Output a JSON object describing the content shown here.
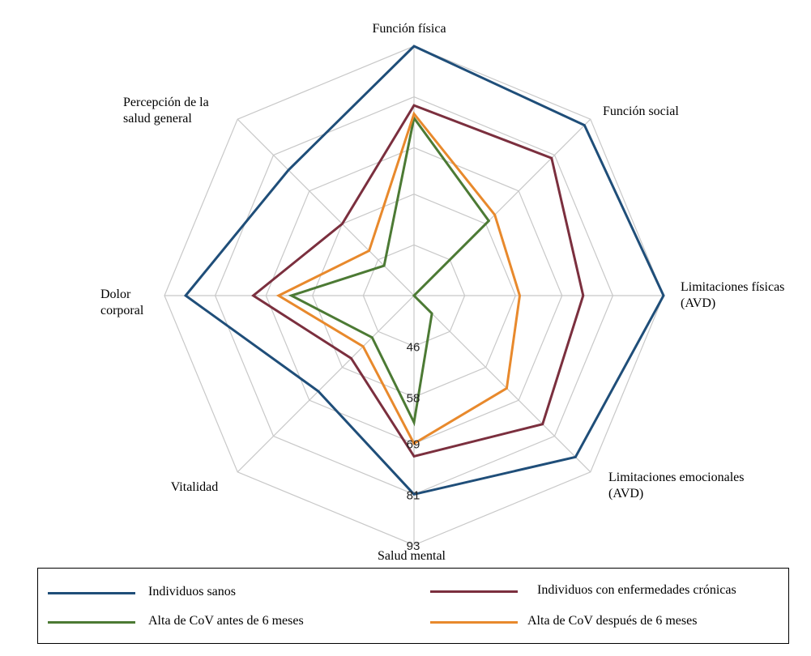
{
  "chart_data": {
    "type": "radar",
    "axes": [
      "Función física",
      "Función social",
      "Limitaciones físicas (AVD)",
      "Limitaciones emocionales (AVD)",
      "Salud mental",
      "Vitalidad",
      "Dolor corporal",
      "Percepción de la salud general"
    ],
    "axis_label_lines": [
      [
        "Función física"
      ],
      [
        "Función social"
      ],
      [
        "Limitaciones físicas",
        "(AVD)"
      ],
      [
        "Limitaciones emocionales",
        "(AVD)"
      ],
      [
        "Salud mental"
      ],
      [
        "Vitalidad"
      ],
      [
        "Dolor",
        "corporal"
      ],
      [
        "Percepción de la",
        "salud general"
      ]
    ],
    "tick_labels": [
      "46",
      "58",
      "69",
      "81",
      "93"
    ],
    "ticks": [
      46,
      58,
      69,
      81,
      93
    ],
    "rlim": [
      34,
      93
    ],
    "series": [
      {
        "name": "Individuos sanos",
        "color": "#1f4e79",
        "values": [
          93,
          91,
          93,
          88,
          81,
          66,
          88,
          76
        ]
      },
      {
        "name": "Individuos con enfermedades crónicas",
        "color": "#7b2f3e",
        "values": [
          79,
          80,
          74,
          77,
          72,
          55,
          72,
          58
        ]
      },
      {
        "name": "Alta de CoV antes de 6 meses",
        "color": "#4c7a34",
        "values": [
          76,
          59,
          34,
          40,
          64,
          48,
          63,
          44
        ]
      },
      {
        "name": "Alta de CoV después de 6 meses",
        "color": "#e8892c",
        "values": [
          77,
          61,
          59,
          65,
          69,
          51,
          66,
          49
        ]
      }
    ],
    "grid": true,
    "legend_position": "bottom"
  }
}
